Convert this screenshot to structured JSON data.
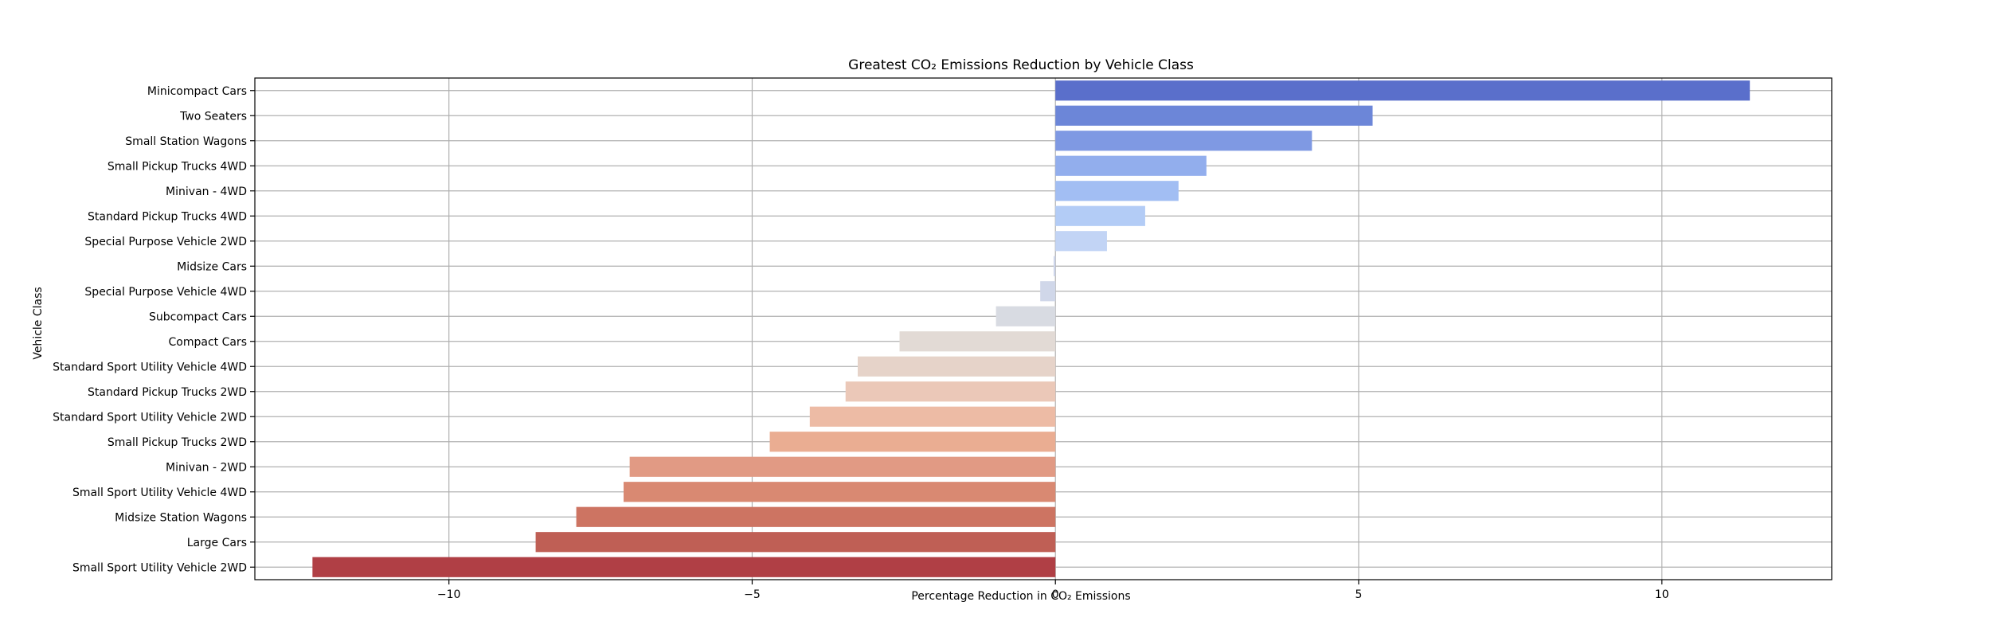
{
  "chart_data": {
    "type": "bar",
    "orientation": "horizontal",
    "title": "Greatest CO₂ Emissions Reduction by Vehicle Class",
    "xlabel": "Percentage Reduction in CO₂ Emissions",
    "ylabel": "Vehicle Class",
    "xlim": [
      -13.2,
      12.8
    ],
    "xticks": [
      -10,
      -5,
      0,
      5,
      10
    ],
    "xtick_labels": [
      "−10",
      "−5",
      "0",
      "5",
      "10"
    ],
    "grid": true,
    "legend": "none",
    "palette": "coolwarm",
    "categories": [
      "Minicompact Cars",
      "Two Seaters",
      "Small Station Wagons",
      "Small Pickup Trucks 4WD",
      "Minivan - 4WD",
      "Standard Pickup Trucks 4WD",
      "Special Purpose Vehicle 2WD",
      "Midsize Cars",
      "Special Purpose Vehicle 4WD",
      "Subcompact Cars",
      "Compact Cars",
      "Standard Sport Utility Vehicle 4WD",
      "Standard Pickup Trucks 2WD",
      "Standard Sport Utility Vehicle 2WD",
      "Small Pickup Trucks 2WD",
      "Minivan - 2WD",
      "Small Sport Utility Vehicle 4WD",
      "Midsize Station Wagons",
      "Large Cars",
      "Small Sport Utility Vehicle 2WD"
    ],
    "values": [
      11.45,
      5.23,
      4.23,
      2.49,
      2.03,
      1.48,
      0.85,
      -0.03,
      -0.25,
      -0.98,
      -2.57,
      -3.26,
      -3.46,
      -4.05,
      -4.71,
      -7.02,
      -7.12,
      -7.9,
      -8.57,
      -12.25
    ],
    "colors": [
      "#5a6fcb",
      "#6c86d8",
      "#7f99e3",
      "#92aeed",
      "#a2bef3",
      "#b3ccf6",
      "#c2d4f5",
      "#cdd5ea",
      "#d0d7e9",
      "#d8dbe2",
      "#e2dad5",
      "#e6d3c9",
      "#ebc8b8",
      "#edbba5",
      "#eaad92",
      "#e19a84",
      "#d98972",
      "#cd7462",
      "#bf5f55",
      "#b03f45"
    ]
  }
}
